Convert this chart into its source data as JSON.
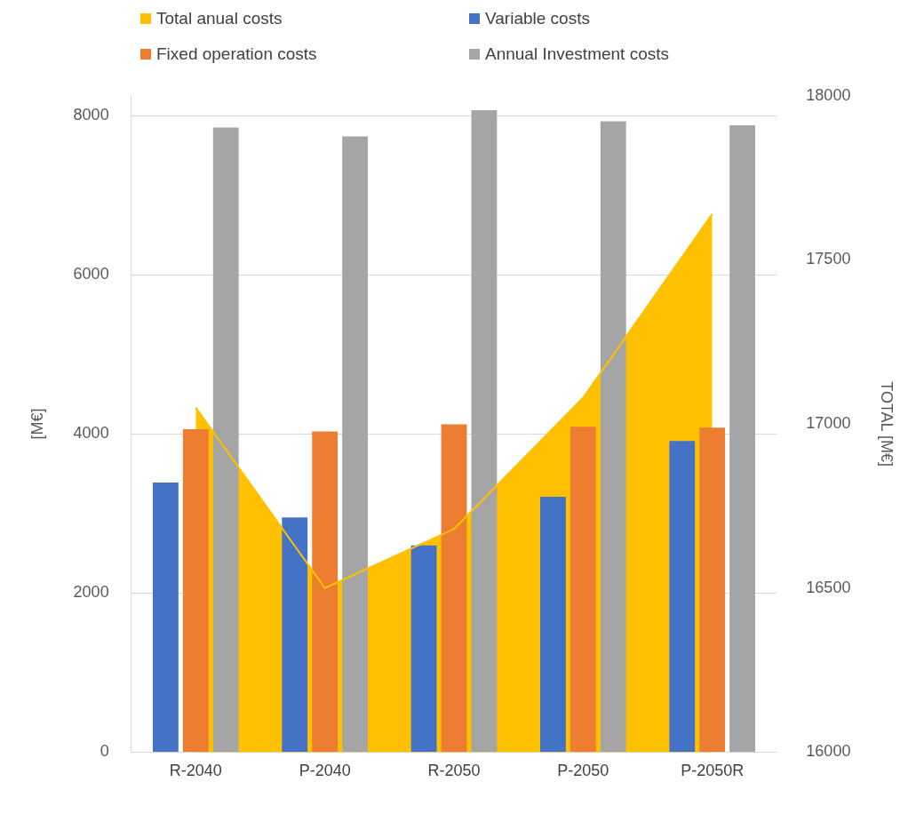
{
  "chart_data": {
    "type": "bar",
    "categories": [
      "R-2040",
      "P-2040",
      "R-2050",
      "P-2050",
      "P-2050R"
    ],
    "series": [
      {
        "name": "Total anual costs",
        "type": "area",
        "axis": "y2",
        "color": "#ffc000",
        "values": [
          17050,
          16500,
          16680,
          17080,
          17640
        ]
      },
      {
        "name": "Variable costs",
        "color": "#4472c4",
        "values": [
          3390,
          2950,
          2600,
          3210,
          3910
        ]
      },
      {
        "name": "Fixed operation costs",
        "color": "#ed7d31",
        "values": [
          4060,
          4030,
          4120,
          4090,
          4080
        ]
      },
      {
        "name": "Annual Investment costs",
        "color": "#a5a5a5",
        "values": [
          7850,
          7740,
          8070,
          7930,
          7880
        ]
      }
    ],
    "ylabel": "[M€]",
    "y2label": "TOTAL [M€]",
    "ylim": [
      0,
      8250
    ],
    "yticks": [
      0,
      2000,
      4000,
      6000,
      8000
    ],
    "y2lim": [
      16000,
      18000
    ],
    "y2ticks": [
      16000,
      16500,
      17000,
      17500,
      18000
    ],
    "grid": "y",
    "legend": "top"
  }
}
